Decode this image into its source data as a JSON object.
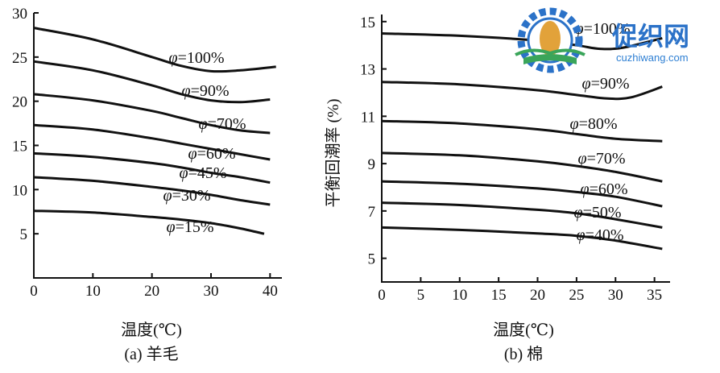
{
  "watermark": {
    "brand": "促织网",
    "url": "cuzhiwang.com",
    "colors": {
      "blue": "#2b72c8",
      "gold": "#e2a23a",
      "green": "#3aa55a"
    }
  },
  "chart_data": [
    {
      "type": "line",
      "title": "(a) 羊毛",
      "xlabel": "温度(℃)",
      "ylabel": "",
      "xlim": [
        0,
        42
      ],
      "ylim": [
        0,
        30
      ],
      "xticks": [
        "0",
        "10",
        "20",
        "30",
        "40"
      ],
      "yticks": [
        "5",
        "10",
        "15",
        "20",
        "25",
        "30"
      ],
      "grid": false,
      "series": [
        {
          "name": "φ=100%",
          "points": [
            [
              0,
              28.3
            ],
            [
              10,
              27.0
            ],
            [
              20,
              25.0
            ],
            [
              25,
              24.0
            ],
            [
              30,
              23.4
            ],
            [
              35,
              23.5
            ],
            [
              41,
              23.9
            ]
          ]
        },
        {
          "name": "φ=90%",
          "points": [
            [
              0,
              24.5
            ],
            [
              10,
              23.5
            ],
            [
              20,
              21.8
            ],
            [
              25,
              20.8
            ],
            [
              30,
              20.1
            ],
            [
              35,
              19.9
            ],
            [
              40,
              20.2
            ]
          ]
        },
        {
          "name": "φ=70%",
          "points": [
            [
              0,
              20.8
            ],
            [
              10,
              20.1
            ],
            [
              20,
              18.9
            ],
            [
              25,
              18.1
            ],
            [
              30,
              17.3
            ],
            [
              35,
              16.7
            ],
            [
              40,
              16.4
            ]
          ]
        },
        {
          "name": "φ=60%",
          "points": [
            [
              0,
              17.3
            ],
            [
              10,
              16.8
            ],
            [
              20,
              15.8
            ],
            [
              25,
              15.2
            ],
            [
              30,
              14.6
            ],
            [
              35,
              14.0
            ],
            [
              40,
              13.4
            ]
          ]
        },
        {
          "name": "φ=45%",
          "points": [
            [
              0,
              14.1
            ],
            [
              10,
              13.7
            ],
            [
              20,
              13.0
            ],
            [
              25,
              12.5
            ],
            [
              30,
              11.9
            ],
            [
              35,
              11.4
            ],
            [
              40,
              10.8
            ]
          ]
        },
        {
          "name": "φ=30%",
          "points": [
            [
              0,
              11.4
            ],
            [
              10,
              11.0
            ],
            [
              20,
              10.3
            ],
            [
              25,
              9.9
            ],
            [
              30,
              9.4
            ],
            [
              35,
              8.8
            ],
            [
              40,
              8.3
            ]
          ]
        },
        {
          "name": "φ=15%",
          "points": [
            [
              0,
              7.6
            ],
            [
              10,
              7.4
            ],
            [
              20,
              6.9
            ],
            [
              25,
              6.6
            ],
            [
              30,
              6.2
            ],
            [
              35,
              5.6
            ],
            [
              39,
              5.0
            ]
          ]
        }
      ]
    },
    {
      "type": "line",
      "title": "(b) 棉",
      "xlabel": "温度(℃)",
      "ylabel": "平衡回潮率 (%)",
      "xlim": [
        0,
        37
      ],
      "ylim": [
        4,
        15.3
      ],
      "xticks": [
        "0",
        "5",
        "10",
        "15",
        "20",
        "25",
        "30",
        "35"
      ],
      "yticks": [
        "5",
        "7",
        "9",
        "11",
        "13",
        "15"
      ],
      "grid": false,
      "series": [
        {
          "name": "φ=100%",
          "points": [
            [
              0,
              14.5
            ],
            [
              10,
              14.4
            ],
            [
              20,
              14.2
            ],
            [
              25,
              14.0
            ],
            [
              28,
              13.85
            ],
            [
              31,
              13.9
            ],
            [
              36,
              14.3
            ]
          ]
        },
        {
          "name": "φ=90%",
          "points": [
            [
              0,
              12.45
            ],
            [
              10,
              12.35
            ],
            [
              20,
              12.1
            ],
            [
              25,
              11.9
            ],
            [
              29,
              11.75
            ],
            [
              32,
              11.8
            ],
            [
              36,
              12.25
            ]
          ]
        },
        {
          "name": "φ=80%",
          "points": [
            [
              0,
              10.8
            ],
            [
              10,
              10.7
            ],
            [
              20,
              10.45
            ],
            [
              25,
              10.25
            ],
            [
              30,
              10.05
            ],
            [
              36,
              9.95
            ]
          ]
        },
        {
          "name": "φ=70%",
          "points": [
            [
              0,
              9.45
            ],
            [
              10,
              9.35
            ],
            [
              20,
              9.1
            ],
            [
              25,
              8.9
            ],
            [
              30,
              8.65
            ],
            [
              36,
              8.25
            ]
          ]
        },
        {
          "name": "φ=60%",
          "points": [
            [
              0,
              8.25
            ],
            [
              10,
              8.15
            ],
            [
              20,
              7.95
            ],
            [
              25,
              7.8
            ],
            [
              30,
              7.6
            ],
            [
              36,
              7.2
            ]
          ]
        },
        {
          "name": "φ=50%",
          "points": [
            [
              0,
              7.35
            ],
            [
              10,
              7.25
            ],
            [
              20,
              7.05
            ],
            [
              25,
              6.9
            ],
            [
              30,
              6.65
            ],
            [
              36,
              6.3
            ]
          ]
        },
        {
          "name": "φ=40%",
          "points": [
            [
              0,
              6.3
            ],
            [
              10,
              6.2
            ],
            [
              20,
              6.05
            ],
            [
              25,
              5.95
            ],
            [
              30,
              5.75
            ],
            [
              36,
              5.4
            ]
          ]
        }
      ]
    }
  ]
}
